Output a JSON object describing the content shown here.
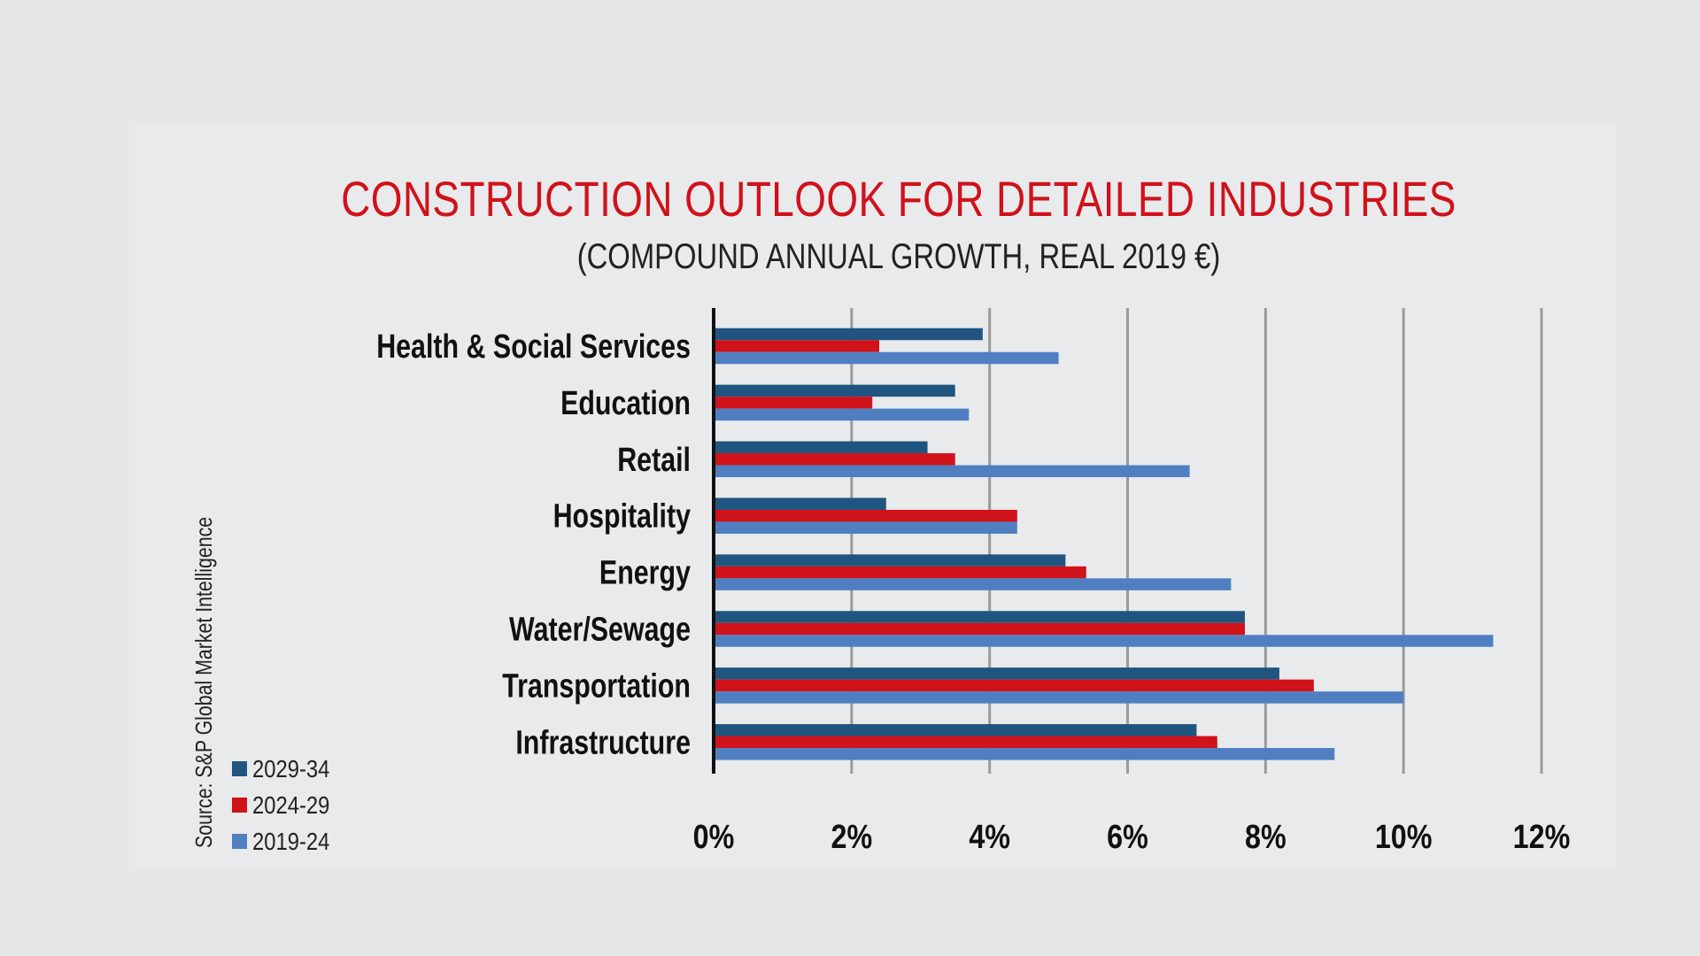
{
  "chart_data": {
    "type": "bar",
    "orientation": "horizontal",
    "title": "CONSTRUCTION OUTLOOK FOR DETAILED INDUSTRIES",
    "subtitle": "(COMPOUND ANNUAL GROWTH, REAL 2019 €)",
    "source": "Source: S&P Global Market Intelligence",
    "categories": [
      "Health & Social Services",
      "Education",
      "Retail",
      "Hospitality",
      "Energy",
      "Water/Sewage",
      "Transportation",
      "Infrastructure"
    ],
    "series": [
      {
        "name": "2029-34",
        "color": "#1f5580",
        "values": [
          3.9,
          3.5,
          3.1,
          2.5,
          5.1,
          7.7,
          8.2,
          7.0
        ]
      },
      {
        "name": "2024-29",
        "color": "#d0121b",
        "values": [
          2.4,
          2.3,
          3.5,
          4.4,
          5.4,
          7.7,
          8.7,
          7.3
        ]
      },
      {
        "name": "2019-24",
        "color": "#4f7fc1",
        "values": [
          5.0,
          3.7,
          6.9,
          4.4,
          7.5,
          11.3,
          10.0,
          9.0
        ]
      }
    ],
    "xlim": [
      0,
      12
    ],
    "xticks": [
      0,
      2,
      4,
      6,
      8,
      10,
      12
    ],
    "xtick_labels": [
      "0%",
      "2%",
      "4%",
      "6%",
      "8%",
      "10%",
      "12%"
    ],
    "grid": true,
    "legend_position": "bottom-left"
  }
}
